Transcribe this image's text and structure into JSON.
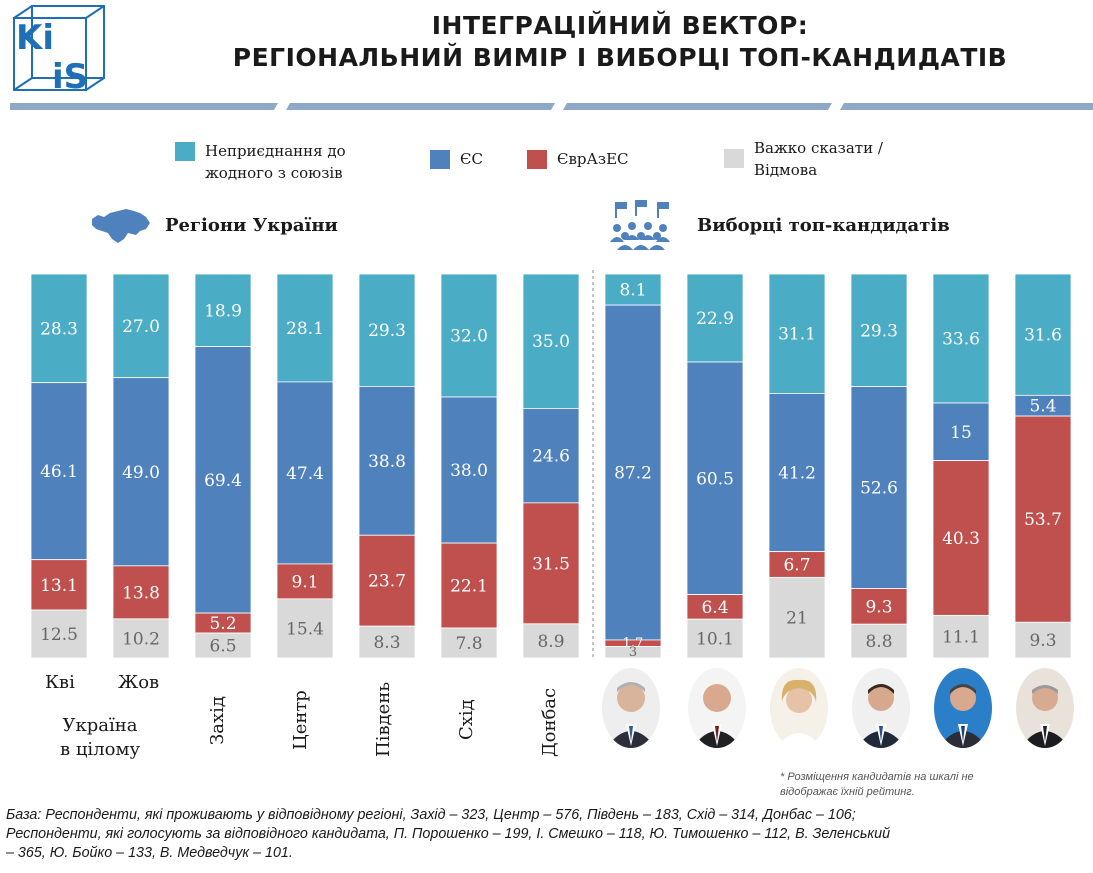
{
  "logo": {
    "text_top": "Ki",
    "text_bottom": "iS"
  },
  "title": {
    "line1": "ІНТЕГРАЦІЙНИЙ ВЕКТОР:",
    "line2": "РЕГІОНАЛЬНИЙ ВИМІР І ВИБОРЦІ ТОП-КАНДИДАТІВ"
  },
  "legend": [
    {
      "label_1": "Неприєднання до",
      "label_2": "жодного з союзів",
      "color": "#4BACC6"
    },
    {
      "label_1": "ЄС",
      "label_2": "",
      "color": "#4F81BD"
    },
    {
      "label_1": "ЄврАзЕС",
      "label_2": "",
      "color": "#C0504D"
    },
    {
      "label_1": "Важко сказати /",
      "label_2": "Відмова",
      "color": "#D9D9D9"
    }
  ],
  "sections": {
    "regions": "Регіони України",
    "voters": "Виборці топ-кандидатів"
  },
  "x_labels": {
    "kvi": "Кві",
    "zhov": "Жов",
    "ukraine_1": "Україна",
    "ukraine_2": "в цілому",
    "zakhid": "Захід",
    "tsentr": "Центр",
    "pivden": "Південь",
    "skhid": "Схід",
    "donbas": "Донбас"
  },
  "chart_data": {
    "type": "bar",
    "stacked": true,
    "normalized_to": 100,
    "categories": [
      "Кві",
      "Жов",
      "Захід",
      "Центр",
      "Південь",
      "Схід",
      "Донбас",
      "П. Порошенко",
      "І. Смешко",
      "Ю. Тимошенко",
      "В. Зеленський",
      "Ю. Бойко",
      "В. Медведчук"
    ],
    "series": [
      {
        "name": "Неприєднання до жодного з союзів",
        "values": [
          28.3,
          27.0,
          18.9,
          28.1,
          29.3,
          32.0,
          35.0,
          8.1,
          22.9,
          31.1,
          29.3,
          33.6,
          31.6
        ]
      },
      {
        "name": "ЄС",
        "values": [
          46.1,
          49.0,
          69.4,
          47.4,
          38.8,
          38.0,
          24.6,
          87.2,
          60.5,
          41.2,
          52.6,
          15,
          5.4
        ]
      },
      {
        "name": "ЄврАзЕС",
        "values": [
          13.1,
          13.8,
          5.2,
          9.1,
          23.7,
          22.1,
          31.5,
          1.7,
          6.4,
          6.7,
          9.3,
          40.3,
          53.7
        ]
      },
      {
        "name": "Важко сказати / Відмова",
        "values": [
          12.5,
          10.2,
          6.5,
          15.4,
          8.3,
          7.8,
          8.9,
          3,
          10.1,
          21,
          8.8,
          11.1,
          9.3
        ]
      }
    ],
    "data_labels": [
      [
        "28.3",
        "46.1",
        "13.1",
        "12.5"
      ],
      [
        "27.0",
        "49.0",
        "13.8",
        "10.2"
      ],
      [
        "18.9",
        "69.4",
        "5.2",
        "6.5"
      ],
      [
        "28.1",
        "47.4",
        "9.1",
        "15.4"
      ],
      [
        "29.3",
        "38.8",
        "23.7",
        "8.3"
      ],
      [
        "32.0",
        "38.0",
        "22.1",
        "7.8"
      ],
      [
        "35.0",
        "24.6",
        "31.5",
        "8.9"
      ],
      [
        "8.1",
        "87.2",
        "1.7",
        "3"
      ],
      [
        "22.9",
        "60.5",
        "6.4",
        "10.1"
      ],
      [
        "31.1",
        "41.2",
        "6.7",
        "21"
      ],
      [
        "29.3",
        "52.6",
        "9.3",
        "8.8"
      ],
      [
        "33.6",
        "15",
        "40.3",
        "11.1"
      ],
      [
        "31.6",
        "5.4",
        "53.7",
        "9.3"
      ]
    ],
    "colors": [
      "#4BACC6",
      "#4F81BD",
      "#C0504D",
      "#D9D9D9"
    ]
  },
  "note": {
    "line1": "* Розміщення кандидатів на шкалі не",
    "line2": "відображає їхній рейтинг."
  },
  "base": {
    "line1": "База: Респонденти, які проживають у відповідному регіоні, Захід – 323, Центр – 576, Південь – 183, Схід – 314, Донбас – 106;",
    "line2": "Респонденти, які голосують за відповідного кандидата, П. Порошенко – 199, І. Смешко – 118, Ю. Тимошенко – 112, В. Зеленський",
    "line3": "– 365, Ю. Бойко – 133, В. Медведчук – 101."
  }
}
